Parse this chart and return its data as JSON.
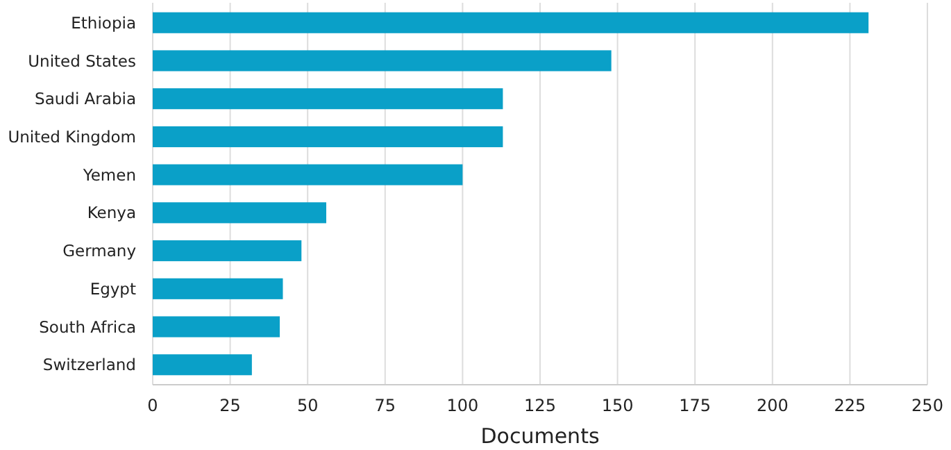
{
  "chart_data": {
    "type": "bar",
    "orientation": "horizontal",
    "xlabel": "Documents",
    "categories": [
      "Ethiopia",
      "United States",
      "Saudi Arabia",
      "United Kingdom",
      "Yemen",
      "Kenya",
      "Germany",
      "Egypt",
      "South Africa",
      "Switzerland"
    ],
    "values": [
      231,
      148,
      113,
      113,
      100,
      56,
      48,
      42,
      41,
      32
    ],
    "color": "#0aa0c8",
    "xlim": [
      0,
      250
    ],
    "xticks": [
      0,
      25,
      50,
      75,
      100,
      125,
      150,
      175,
      200,
      225,
      250
    ],
    "grid": "x"
  }
}
